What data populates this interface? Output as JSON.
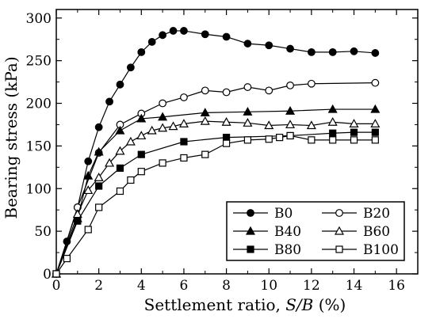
{
  "chart_data": {
    "type": "line",
    "xlabel": "Settlement ratio, S/B (%)",
    "xlabel_parts": {
      "prefix": "Settlement ratio, ",
      "italic": "S/B",
      "suffix": " (%)"
    },
    "ylabel": "Bearing stress (kPa)",
    "xlim": [
      0,
      17
    ],
    "ylim": [
      0,
      310
    ],
    "xticks": [
      0,
      2,
      4,
      6,
      8,
      10,
      12,
      14,
      16
    ],
    "yticks": [
      0,
      50,
      100,
      150,
      200,
      250,
      300
    ],
    "grid": false,
    "legend_position": "bottom-right",
    "series": [
      {
        "name": "B0",
        "marker": "circle",
        "fill": "filled",
        "x": [
          0,
          0.5,
          1,
          1.5,
          2,
          2.5,
          3,
          3.5,
          4,
          4.5,
          5,
          5.5,
          6,
          7,
          8,
          9,
          10,
          11,
          12,
          13,
          14,
          15
        ],
        "y": [
          0,
          38,
          78,
          132,
          172,
          202,
          222,
          242,
          260,
          272,
          280,
          285,
          285,
          281,
          278,
          270,
          268,
          264,
          260,
          260,
          261,
          259
        ]
      },
      {
        "name": "B20",
        "marker": "circle",
        "fill": "open",
        "x": [
          0,
          1,
          2,
          3,
          4,
          5,
          6,
          7,
          8,
          9,
          10,
          11,
          12,
          15
        ],
        "y": [
          0,
          78,
          142,
          175,
          188,
          200,
          207,
          215,
          213,
          219,
          215,
          221,
          223,
          224
        ]
      },
      {
        "name": "B40",
        "marker": "triangle",
        "fill": "filled",
        "x": [
          0,
          1,
          1.5,
          2,
          3,
          4,
          5,
          7,
          9,
          11,
          13,
          15
        ],
        "y": [
          0,
          65,
          115,
          143,
          168,
          182,
          184,
          189,
          190,
          191,
          193,
          193
        ]
      },
      {
        "name": "B60",
        "marker": "triangle",
        "fill": "open",
        "x": [
          0,
          1,
          1.5,
          2,
          2.5,
          3,
          3.5,
          4,
          4.5,
          5,
          5.5,
          6,
          7,
          8,
          9,
          10,
          11,
          12,
          13,
          14,
          15
        ],
        "y": [
          0,
          70,
          98,
          113,
          130,
          144,
          155,
          162,
          168,
          171,
          173,
          176,
          179,
          178,
          177,
          174,
          175,
          174,
          178,
          176,
          176
        ]
      },
      {
        "name": "B80",
        "marker": "square",
        "fill": "filled",
        "x": [
          0,
          1,
          2,
          3,
          4,
          6,
          8,
          11,
          13,
          14,
          15
        ],
        "y": [
          0,
          62,
          103,
          124,
          140,
          155,
          160,
          162,
          165,
          166,
          166
        ]
      },
      {
        "name": "B100",
        "marker": "square",
        "fill": "open",
        "x": [
          0,
          0.5,
          1.5,
          2,
          3,
          3.5,
          4,
          5,
          6,
          7,
          8,
          9,
          10,
          10.5,
          11,
          12,
          13,
          14,
          15
        ],
        "y": [
          0,
          18,
          52,
          78,
          97,
          110,
          120,
          130,
          136,
          140,
          153,
          157,
          158,
          160,
          162,
          157,
          157,
          157,
          157
        ]
      }
    ]
  }
}
